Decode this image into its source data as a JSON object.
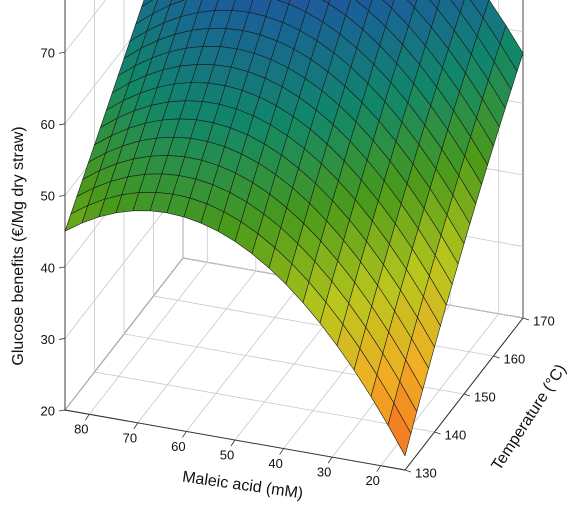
{
  "chart_data": {
    "type": "surface",
    "x_axis": {
      "label": "Maleic acid (mM)",
      "range": [
        15,
        85
      ],
      "ticks": [
        20,
        30,
        40,
        50,
        60,
        70,
        80
      ]
    },
    "y_axis": {
      "label": "Temperature (°C)",
      "range": [
        130,
        170
      ],
      "ticks": [
        130,
        140,
        150,
        160,
        170
      ]
    },
    "z_axis": {
      "label": "Glucose benefits (€/Mg dry straw)",
      "range": [
        20,
        78
      ],
      "ticks": [
        20,
        30,
        40,
        50,
        60,
        70
      ]
    },
    "grid": true,
    "mesh_resolution": 20,
    "colormap": [
      "#f46a1f",
      "#f0b024",
      "#b7c61d",
      "#4a9a1a",
      "#11876a",
      "#1a5f9a",
      "#4d2a9a"
    ],
    "surface_samples": [
      {
        "maleic_acid_mM": 85,
        "temperature_C": 130,
        "value": 45
      },
      {
        "maleic_acid_mM": 15,
        "temperature_C": 130,
        "value": 22
      },
      {
        "maleic_acid_mM": 15,
        "temperature_C": 170,
        "value": 57
      },
      {
        "maleic_acid_mM": 85,
        "temperature_C": 170,
        "value": 72
      },
      {
        "maleic_acid_mM": 60,
        "temperature_C": 165,
        "value": 76
      }
    ]
  }
}
